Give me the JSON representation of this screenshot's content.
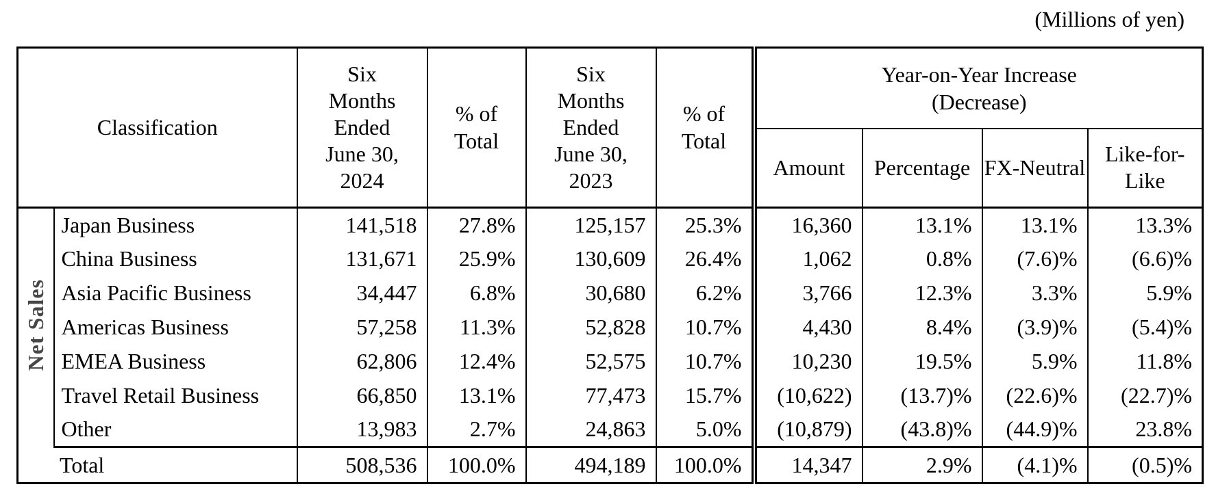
{
  "unit_note": "(Millions of yen)",
  "table": {
    "headers": {
      "classification": "Classification",
      "period_2024": "Six Months Ended June 30, 2024",
      "pct_total_2024": "% of Total",
      "period_2023": "Six Months Ended June 30, 2023",
      "pct_total_2023": "% of Total",
      "yoy_group": "Year-on-Year Increase (Decrease)",
      "amount": "Amount",
      "percentage": "Percentage",
      "fx_neutral": "FX-Neutral",
      "like_for_like": "Like-for-Like"
    },
    "row_group_label": "Net Sales",
    "rows": [
      {
        "name": "Japan Business",
        "fy2024": "141,518",
        "pct2024": "27.8%",
        "fy2023": "125,157",
        "pct2023": "25.3%",
        "amount": "16,360",
        "percentage": "13.1%",
        "fx": "13.1%",
        "lfl": "13.3%"
      },
      {
        "name": "China Business",
        "fy2024": "131,671",
        "pct2024": "25.9%",
        "fy2023": "130,609",
        "pct2023": "26.4%",
        "amount": "1,062",
        "percentage": "0.8%",
        "fx": "(7.6)%",
        "lfl": "(6.6)%"
      },
      {
        "name": "Asia Pacific Business",
        "fy2024": "34,447",
        "pct2024": "6.8%",
        "fy2023": "30,680",
        "pct2023": "6.2%",
        "amount": "3,766",
        "percentage": "12.3%",
        "fx": "3.3%",
        "lfl": "5.9%"
      },
      {
        "name": "Americas Business",
        "fy2024": "57,258",
        "pct2024": "11.3%",
        "fy2023": "52,828",
        "pct2023": "10.7%",
        "amount": "4,430",
        "percentage": "8.4%",
        "fx": "(3.9)%",
        "lfl": "(5.4)%"
      },
      {
        "name": "EMEA Business",
        "fy2024": "62,806",
        "pct2024": "12.4%",
        "fy2023": "52,575",
        "pct2023": "10.7%",
        "amount": "10,230",
        "percentage": "19.5%",
        "fx": "5.9%",
        "lfl": "11.8%"
      },
      {
        "name": "Travel Retail Business",
        "fy2024": "66,850",
        "pct2024": "13.1%",
        "fy2023": "77,473",
        "pct2023": "15.7%",
        "amount": "(10,622)",
        "percentage": "(13.7)%",
        "fx": "(22.6)%",
        "lfl": "(22.7)%"
      },
      {
        "name": "Other",
        "fy2024": "13,983",
        "pct2024": "2.7%",
        "fy2023": "24,863",
        "pct2023": "5.0%",
        "amount": "(10,879)",
        "percentage": "(43.8)%",
        "fx": "(44.9)%",
        "lfl": "23.8%"
      }
    ],
    "total": {
      "name": "Total",
      "fy2024": "508,536",
      "pct2024": "100.0%",
      "fy2023": "494,189",
      "pct2023": "100.0%",
      "amount": "14,347",
      "percentage": "2.9%",
      "fx": "(4.1)%",
      "lfl": "(0.5)%"
    }
  }
}
